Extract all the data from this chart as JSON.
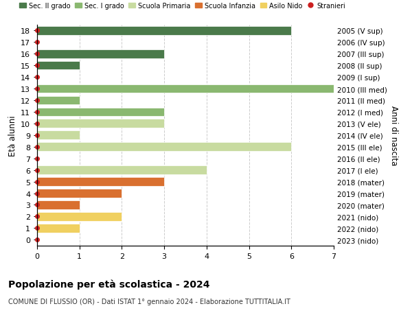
{
  "ages": [
    0,
    1,
    2,
    3,
    4,
    5,
    6,
    7,
    8,
    9,
    10,
    11,
    12,
    13,
    14,
    15,
    16,
    17,
    18
  ],
  "years": [
    "2023 (nido)",
    "2022 (nido)",
    "2021 (nido)",
    "2020 (mater)",
    "2019 (mater)",
    "2018 (mater)",
    "2017 (I ele)",
    "2016 (II ele)",
    "2015 (III ele)",
    "2014 (IV ele)",
    "2013 (V ele)",
    "2012 (I med)",
    "2011 (II med)",
    "2010 (III med)",
    "2009 (I sup)",
    "2008 (II sup)",
    "2007 (III sup)",
    "2006 (IV sup)",
    "2005 (V sup)"
  ],
  "values": [
    0,
    1,
    2,
    1,
    2,
    3,
    4,
    0,
    6,
    1,
    3,
    3,
    1,
    7,
    0,
    1,
    3,
    0,
    6
  ],
  "bar_colors": [
    "#f0d060",
    "#f0d060",
    "#f0d060",
    "#d97030",
    "#d97030",
    "#d97030",
    "#c8dba0",
    "#c8dba0",
    "#c8dba0",
    "#c8dba0",
    "#c8dba0",
    "#8ab870",
    "#8ab870",
    "#8ab870",
    "#4a7a4a",
    "#4a7a4a",
    "#4a7a4a",
    "#4a7a4a",
    "#4a7a4a"
  ],
  "stranieri_color": "#cc2020",
  "ylabel_left": "Età alunni",
  "ylabel_right": "Anni di nascita",
  "xlim": [
    0,
    7
  ],
  "title": "Popolazione per età scolastica - 2024",
  "subtitle": "COMUNE DI FLUSSIO (OR) - Dati ISTAT 1° gennaio 2024 - Elaborazione TUTTITALIA.IT",
  "legend_entries": [
    "Sec. II grado",
    "Sec. I grado",
    "Scuola Primaria",
    "Scuola Infanzia",
    "Asilo Nido",
    "Stranieri"
  ],
  "legend_colors": [
    "#4a7a4a",
    "#8ab870",
    "#c8dba0",
    "#d97030",
    "#f0d060",
    "#cc2020"
  ],
  "bg_color": "#ffffff",
  "grid_color": "#cccccc"
}
